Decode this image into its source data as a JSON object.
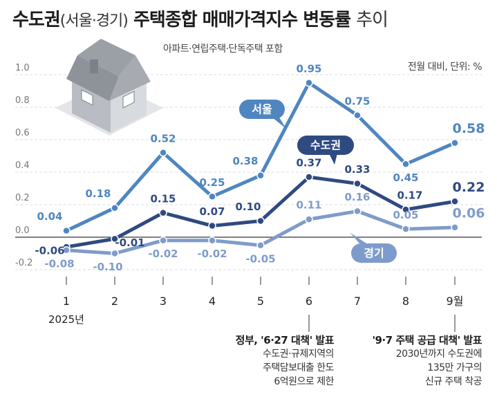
{
  "header": {
    "title_main": "수도권",
    "title_paren": "(서울·경기)",
    "title_bold2": "주택종합 매매가격지수 변동률",
    "title_tail": "추이",
    "subtitle": "아파트·연립주택·단독주택 포함",
    "unit": "전월 대비, 단위: %"
  },
  "colors": {
    "seoul": "#4f86c0",
    "capital": "#2f4a80",
    "gyeonggi": "#7e9ccb",
    "grid": "#d9dde3",
    "zero": "#333333",
    "house_roof": "#8a8f96",
    "house_wall": "#e7e9ec"
  },
  "icons": {
    "illustration": "house-icon"
  },
  "chart_data": {
    "type": "line",
    "x": [
      "1",
      "2",
      "3",
      "4",
      "5",
      "6",
      "7",
      "8",
      "9월"
    ],
    "x_sub_label": "2025년",
    "y_ticks": [
      "1.0",
      "0.8",
      "0.6",
      "0.4",
      "0.2",
      "0.0",
      "-0.2"
    ],
    "ylim": [
      -0.2,
      1.0
    ],
    "grid": "dashed horizontal",
    "series": [
      {
        "name": "서울",
        "color": "#4f86c0",
        "values": [
          0.04,
          0.18,
          0.52,
          0.25,
          0.38,
          0.95,
          0.75,
          0.45,
          0.58
        ],
        "labels": [
          "0.04",
          "0.18",
          "0.52",
          "0.25",
          "0.38",
          "0.95",
          "0.75",
          "0.45",
          "0.58"
        ]
      },
      {
        "name": "수도권",
        "color": "#2f4a80",
        "values": [
          -0.06,
          -0.01,
          0.15,
          0.07,
          0.1,
          0.37,
          0.33,
          0.17,
          0.22
        ],
        "labels": [
          "-0.06",
          "-0.01",
          "0.15",
          "0.07",
          "0.10",
          "0.37",
          "0.33",
          "0.17",
          "0.22"
        ]
      },
      {
        "name": "경기",
        "color": "#7e9ccb",
        "values": [
          -0.08,
          -0.1,
          -0.02,
          -0.02,
          -0.05,
          0.11,
          0.16,
          0.05,
          0.06
        ],
        "labels": [
          "-0.08",
          "-0.10",
          "-0.02",
          "-0.02",
          "-0.05",
          "0.11",
          "0.16",
          "0.05",
          "0.06"
        ]
      }
    ]
  },
  "annotations": [
    {
      "head": "정부, '6·27 대책' 발표",
      "lines": [
        "수도권·규제지역의",
        "주택담보대출 한도",
        "6억원으로 제한"
      ]
    },
    {
      "head": "'9·7 주택 공급 대책' 발표",
      "lines": [
        "2030년까지 수도권에",
        "135만 가구의",
        "신규 주택 착공"
      ]
    }
  ]
}
